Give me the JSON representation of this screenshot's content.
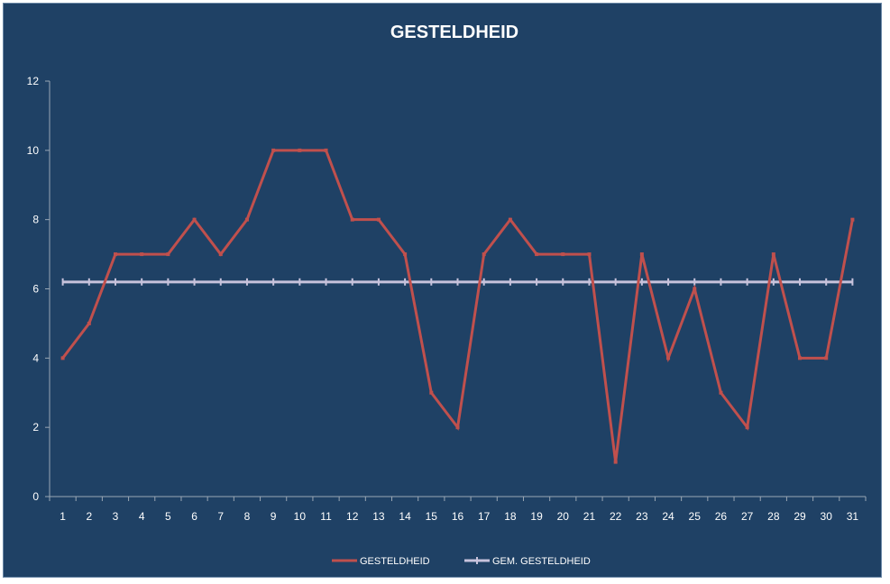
{
  "chart_data": {
    "type": "line",
    "title": "GESTELDHEID",
    "xlabel": "",
    "ylabel": "",
    "x": [
      "1",
      "2",
      "3",
      "4",
      "5",
      "6",
      "7",
      "8",
      "9",
      "10",
      "11",
      "12",
      "13",
      "14",
      "15",
      "16",
      "17",
      "18",
      "19",
      "20",
      "21",
      "22",
      "23",
      "24",
      "25",
      "26",
      "27",
      "28",
      "29",
      "30",
      "31"
    ],
    "ylim": [
      0,
      12
    ],
    "yticks": [
      "0",
      "2",
      "4",
      "6",
      "8",
      "10",
      "12"
    ],
    "grid": false,
    "legend": "bottom",
    "series": [
      {
        "name": "GESTELDHEID",
        "color": "#c0504d",
        "values": [
          4,
          5,
          7,
          7,
          7,
          8,
          7,
          8,
          10,
          10,
          10,
          8,
          8,
          7,
          3,
          2,
          7,
          8,
          7,
          7,
          7,
          1,
          7,
          4,
          6,
          3,
          2,
          7,
          4,
          4,
          8
        ]
      },
      {
        "name": "GEM. GESTELDHEID",
        "color": "#c7c3dc",
        "values": [
          6.2,
          6.2,
          6.2,
          6.2,
          6.2,
          6.2,
          6.2,
          6.2,
          6.2,
          6.2,
          6.2,
          6.2,
          6.2,
          6.2,
          6.2,
          6.2,
          6.2,
          6.2,
          6.2,
          6.2,
          6.2,
          6.2,
          6.2,
          6.2,
          6.2,
          6.2,
          6.2,
          6.2,
          6.2,
          6.2,
          6.2
        ]
      }
    ]
  },
  "colors": {
    "background": "#1f4165",
    "axis": "#9aa7b5",
    "text": "#ffffff"
  }
}
